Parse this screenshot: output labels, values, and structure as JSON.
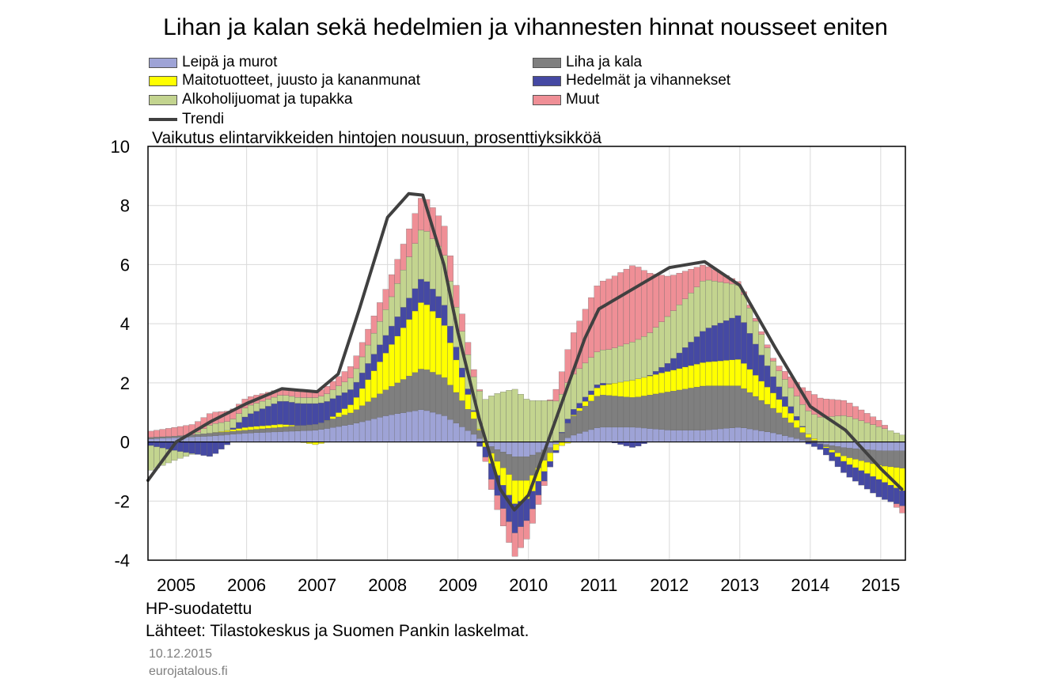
{
  "chart_data": {
    "type": "bar",
    "stacked": true,
    "title": "Lihan ja kalan sekä hedelmien ja vihannesten hinnat nousseet eniten",
    "subtitle": "Vaikutus elintarvikkeiden hintojen nousuun, prosenttiyksikköä",
    "ylim": [
      -4,
      10
    ],
    "yticks": [
      "-4",
      "-2",
      "0",
      "2",
      "4",
      "6",
      "8",
      "10"
    ],
    "xlim": [
      2004.6,
      2015.35
    ],
    "xtick_labels": [
      "2005",
      "2006",
      "2007",
      "2008",
      "2009",
      "2010",
      "2011",
      "2012",
      "2013",
      "2014",
      "2015"
    ],
    "xtick_positions": [
      2005,
      2006,
      2007,
      2008,
      2009,
      2010,
      2011,
      2012,
      2013,
      2014,
      2015
    ],
    "grid": true,
    "legend_position": "top",
    "components_at_knots": {
      "x": [
        2004.6,
        2005.0,
        2005.5,
        2006.0,
        2006.5,
        2007.0,
        2007.5,
        2008.0,
        2008.5,
        2008.8,
        2009.0,
        2009.2,
        2009.5,
        2009.8,
        2010.0,
        2010.3,
        2010.6,
        2011.0,
        2011.5,
        2012.0,
        2012.5,
        2013.0,
        2013.5,
        2014.0,
        2014.5,
        2015.0,
        2015.35
      ],
      "series": [
        {
          "name": "Leipä ja murot",
          "color": "#9ea3d6",
          "values": [
            0.1,
            0.15,
            0.2,
            0.3,
            0.35,
            0.4,
            0.6,
            0.9,
            1.1,
            0.9,
            0.6,
            0.3,
            -0.2,
            -0.5,
            -0.5,
            -0.2,
            0.2,
            0.5,
            0.5,
            0.4,
            0.4,
            0.5,
            0.3,
            0.0,
            -0.2,
            -0.3,
            -0.3
          ]
        },
        {
          "name": "Liha ja kala",
          "color": "#7f7f7f",
          "values": [
            0.05,
            0.05,
            0.1,
            0.1,
            0.15,
            0.2,
            0.4,
            0.9,
            1.4,
            1.3,
            1.0,
            0.6,
            -0.3,
            -0.8,
            -0.8,
            -0.2,
            0.6,
            1.1,
            1.0,
            1.3,
            1.5,
            1.4,
            0.8,
            0.1,
            -0.3,
            -0.5,
            -0.6
          ]
        },
        {
          "name": "Maitotuotteet, juusto ja kananmunat",
          "color": "#ffff00",
          "values": [
            0.0,
            0.0,
            0.0,
            0.1,
            0.1,
            -0.1,
            0.3,
            1.3,
            2.3,
            1.8,
            1.0,
            0.3,
            -0.4,
            -0.8,
            -0.6,
            -0.3,
            0.0,
            0.3,
            0.6,
            0.7,
            0.8,
            0.9,
            0.5,
            0.1,
            -0.2,
            -0.5,
            -0.8
          ]
        },
        {
          "name": "Hedelmät ja vihannekset",
          "color": "#4549a3",
          "values": [
            -0.1,
            -0.3,
            -0.5,
            0.4,
            0.8,
            0.7,
            0.5,
            0.6,
            0.8,
            0.7,
            0.4,
            0.1,
            -0.6,
            -1.0,
            -0.7,
            -0.2,
            0.2,
            0.1,
            -0.2,
            0.3,
            1.1,
            1.5,
            0.5,
            -0.1,
            -0.4,
            -0.6,
            -0.5
          ]
        },
        {
          "name": "Alkoholijuomat ja tupakka",
          "color": "#c3d48f",
          "values": [
            -0.9,
            -0.3,
            0.3,
            0.3,
            0.2,
            0.2,
            0.4,
            0.9,
            1.7,
            1.7,
            1.3,
            1.1,
            1.6,
            1.8,
            1.4,
            1.4,
            1.2,
            1.1,
            1.3,
            1.6,
            1.7,
            1.0,
            0.5,
            0.8,
            0.9,
            0.5,
            0.2
          ]
        },
        {
          "name": "Muut",
          "color": "#ef8f96",
          "values": [
            0.2,
            0.3,
            0.4,
            0.3,
            0.2,
            0.2,
            0.4,
            0.7,
            1.1,
            1.0,
            0.7,
            0.3,
            -0.4,
            -0.8,
            -0.6,
            0.0,
            1.3,
            2.3,
            2.6,
            1.3,
            0.5,
            0.1,
            0.1,
            0.7,
            0.5,
            0.2,
            -0.3
          ]
        }
      ]
    },
    "trend": {
      "name": "Trendi",
      "color": "#404040",
      "x": [
        2004.6,
        2005.0,
        2005.5,
        2006.0,
        2006.5,
        2006.75,
        2007.0,
        2007.3,
        2007.6,
        2008.0,
        2008.3,
        2008.5,
        2008.8,
        2009.0,
        2009.3,
        2009.6,
        2009.8,
        2010.0,
        2010.2,
        2010.5,
        2010.8,
        2011.0,
        2011.5,
        2012.0,
        2012.5,
        2013.0,
        2013.5,
        2014.0,
        2014.5,
        2015.0,
        2015.3
      ],
      "values": [
        -1.3,
        0.0,
        0.7,
        1.3,
        1.8,
        1.75,
        1.7,
        2.3,
        4.5,
        7.6,
        8.4,
        8.35,
        6.0,
        3.7,
        0.8,
        -1.6,
        -2.3,
        -1.8,
        -0.5,
        1.5,
        3.5,
        4.5,
        5.2,
        5.9,
        6.1,
        5.3,
        3.2,
        1.2,
        0.4,
        -0.9,
        -1.6
      ]
    },
    "notes": [
      "HP-suodatettu",
      "Lähteet: Tilastokeskus ja Suomen Pankin laskelmat."
    ],
    "footer_date": "10.12.2015",
    "footer_site": "eurojatalous.fi"
  }
}
